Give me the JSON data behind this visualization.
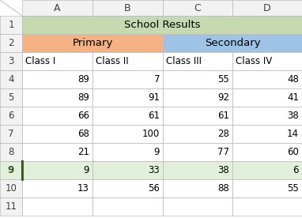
{
  "row_labels": [
    "1",
    "2",
    "3",
    "4",
    "5",
    "6",
    "7",
    "8",
    "9",
    "10",
    "11"
  ],
  "col_labels": [
    "",
    "A",
    "B",
    "C",
    "D"
  ],
  "title_text": "School Results",
  "primary_text": "Primary",
  "secondary_text": "Secondary",
  "headers": [
    "Class I",
    "Class II",
    "Class III",
    "Class IV"
  ],
  "data": [
    [
      89,
      7,
      55,
      48
    ],
    [
      89,
      91,
      92,
      41
    ],
    [
      66,
      61,
      61,
      38
    ],
    [
      68,
      100,
      28,
      14
    ],
    [
      21,
      9,
      77,
      60
    ],
    [
      9,
      33,
      38,
      6
    ],
    [
      13,
      56,
      88,
      55
    ]
  ],
  "title_bg": "#c6d9b0",
  "primary_bg": "#f4b183",
  "secondary_bg": "#9dc3e6",
  "header_bg": "#ffffff",
  "data_bg": "#ffffff",
  "row9_label_color": "#375623",
  "row9_bg": "#e2efda",
  "row9_border_color": "#375623",
  "col_hdr_bg": "#f2f2f2",
  "row_hdr_bg": "#f2f2f2",
  "fig_bg": "#ffffff",
  "grid_color": "#bfbfbf",
  "font_size": 8.5,
  "col_hdr_font_size": 9
}
